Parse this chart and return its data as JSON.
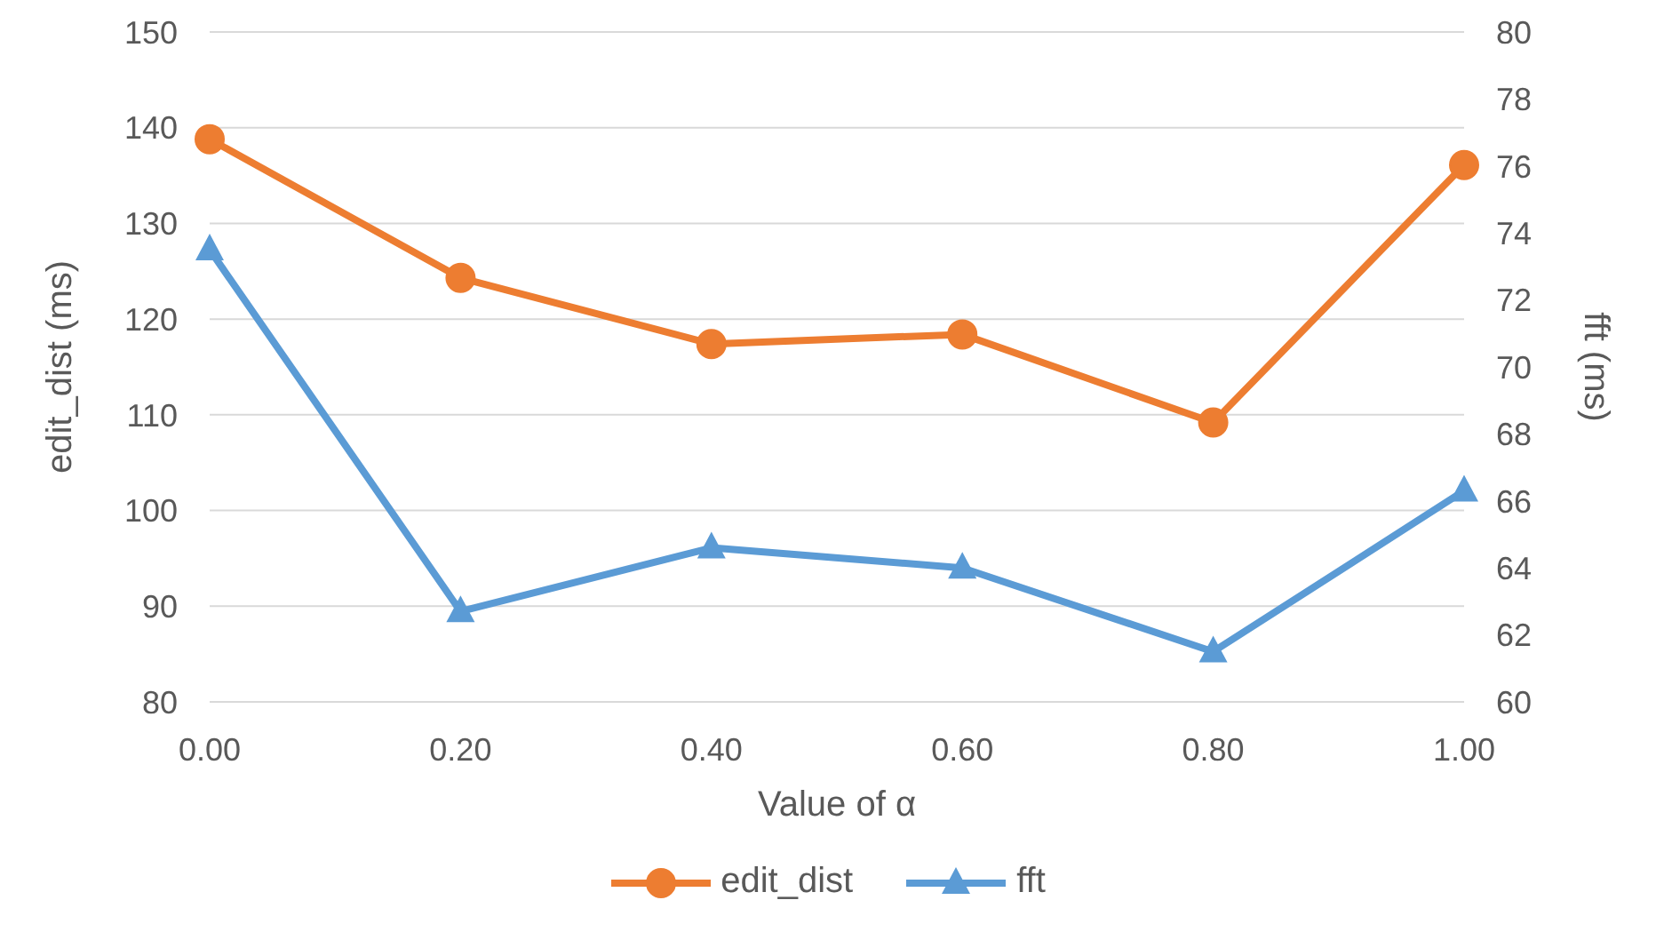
{
  "chart_data": {
    "type": "line",
    "xlabel": "Value of α",
    "ylabel": "edit_dist (ms)",
    "y2label": "fft (ms)",
    "categories": [
      "0.00",
      "0.20",
      "0.40",
      "0.60",
      "0.80",
      "1.00"
    ],
    "series": [
      {
        "name": "edit_dist",
        "color": "#ed7d31",
        "marker": "circle",
        "values": [
          138.8,
          124.3,
          117.4,
          118.4,
          109.2,
          136.1
        ]
      },
      {
        "name": "fft",
        "color": "#5b9bd5",
        "marker": "triangle",
        "axis": "y2",
        "values": [
          73.5,
          62.7,
          64.6,
          64.0,
          61.5,
          66.3
        ]
      }
    ],
    "ylim": [
      80,
      150
    ],
    "yticks": [
      80,
      90,
      100,
      110,
      120,
      130,
      140,
      150
    ],
    "y2lim": [
      60,
      80
    ],
    "y2ticks": [
      60,
      62,
      64,
      66,
      68,
      70,
      72,
      74,
      76,
      78,
      80
    ],
    "grid": "y",
    "legend": "bottom",
    "line_style": "solid"
  }
}
